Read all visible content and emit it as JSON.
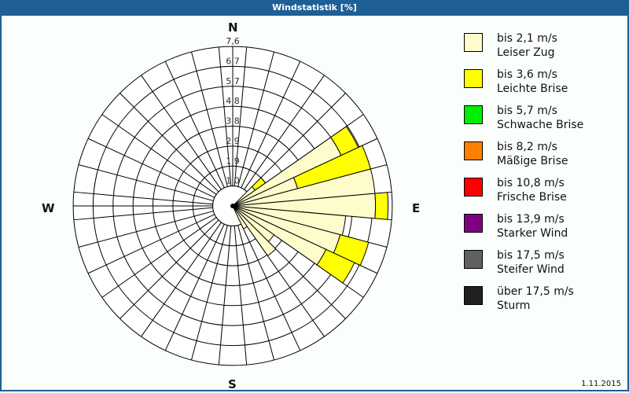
{
  "window": {
    "title": "Windstatistik [%]"
  },
  "compass": {
    "n": "N",
    "e": "E",
    "s": "S",
    "w": "W"
  },
  "footer": {
    "date": "1.11.2015"
  },
  "legend": [
    {
      "speed": "bis 2,1 m/s",
      "name": "Leiser Zug",
      "color": "#fffccc"
    },
    {
      "speed": "bis 3,6 m/s",
      "name": "Leichte Brise",
      "color": "#ffff00"
    },
    {
      "speed": "bis 5,7 m/s",
      "name": "Schwache Brise",
      "color": "#00ee00"
    },
    {
      "speed": "bis 8,2 m/s",
      "name": "Mäßige Brise",
      "color": "#ff8000"
    },
    {
      "speed": "bis 10,8 m/s",
      "name": "Frische Brise",
      "color": "#ff0000"
    },
    {
      "speed": "bis 13,9 m/s",
      "name": "Starker Wind",
      "color": "#800080"
    },
    {
      "speed": "bis 17,5 m/s",
      "name": "Steifer Wind",
      "color": "#606060"
    },
    {
      "speed": "über 17,5 m/s",
      "name": "Sturm",
      "color": "#202020"
    }
  ],
  "chart_data": {
    "type": "polar-bar (wind rose)",
    "title": "Windstatistik [%]",
    "radial_ticks": [
      "1,0",
      "1,9",
      "2,9",
      "3,8",
      "4,8",
      "5,7",
      "6,7",
      "7,6"
    ],
    "radial_max": 7.6,
    "sector_width_deg": 10,
    "direction_labels": [
      "N",
      "E",
      "S",
      "W"
    ],
    "series_names": [
      "bis 2,1 m/s",
      "bis 3,6 m/s"
    ],
    "sectors": [
      {
        "dir": 50,
        "values": [
          1.3,
          0.6
        ]
      },
      {
        "dir": 60,
        "values": [
          5.7,
          0.9
        ]
      },
      {
        "dir": 70,
        "values": [
          3.2,
          3.6
        ]
      },
      {
        "dir": 80,
        "values": [
          6.8,
          0.0
        ]
      },
      {
        "dir": 90,
        "values": [
          6.8,
          0.6
        ]
      },
      {
        "dir": 100,
        "values": [
          5.4,
          0.0
        ]
      },
      {
        "dir": 110,
        "values": [
          5.3,
          1.4
        ]
      },
      {
        "dir": 120,
        "values": [
          4.9,
          1.5
        ]
      },
      {
        "dir": 130,
        "values": [
          2.4,
          0.0
        ]
      },
      {
        "dir": 140,
        "values": [
          2.9,
          0.0
        ]
      },
      {
        "dir": 150,
        "values": [
          1.2,
          0.0
        ]
      }
    ],
    "date": "1.11.2015"
  }
}
